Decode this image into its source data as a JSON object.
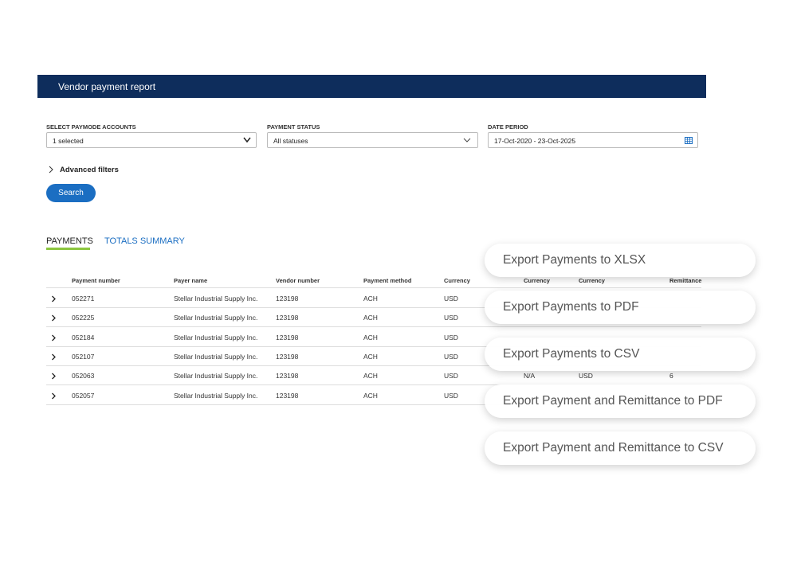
{
  "header": {
    "title": "Vendor payment report"
  },
  "filters": [
    {
      "label": "SELECT PAYMODE ACCOUNTS",
      "value": "1 selected"
    },
    {
      "label": "PAYMENT STATUS",
      "value": "All statuses"
    },
    {
      "label": "DATE PERIOD",
      "value": "17-Oct-2020 - 23-Oct-2025"
    }
  ],
  "advanced_filters": "Advanced filters",
  "search_button": "Search",
  "tabs": [
    "PAYMENTS",
    "TOTALS SUMMARY"
  ],
  "table": {
    "columns": [
      "Payment number",
      "Payer name",
      "Vendor number",
      "Payment method",
      "Currency",
      "Currency",
      "Currency",
      "Remittance"
    ],
    "rows": [
      [
        "052271",
        "Stellar Industrial Supply Inc.",
        "123198",
        "ACH",
        "USD"
      ],
      [
        "052225",
        "Stellar Industrial Supply Inc.",
        "123198",
        "ACH",
        "USD"
      ],
      [
        "052184",
        "Stellar Industrial Supply Inc.",
        "123198",
        "ACH",
        "USD"
      ],
      [
        "052107",
        "Stellar Industrial Supply Inc.",
        "123198",
        "ACH",
        "USD"
      ],
      [
        "052063",
        "Stellar Industrial Supply Inc.",
        "123198",
        "ACH",
        "USD",
        "N/A",
        "USD",
        "6"
      ],
      [
        "052057",
        "Stellar Industrial Supply Inc.",
        "123198",
        "ACH",
        "USD"
      ]
    ]
  },
  "export_menu": [
    "Export Payments to XLSX",
    "Export Payments to PDF",
    "Export Payments to CSV",
    "Export Payment and Remittance to PDF",
    "Export Payment and Remittance to CSV"
  ]
}
